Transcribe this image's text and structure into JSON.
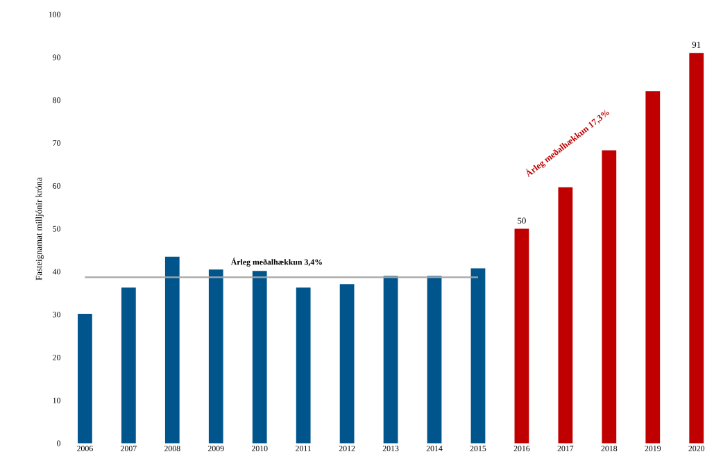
{
  "chart_data": {
    "type": "bar",
    "ylabel": "Fasteignamat milljónir króna",
    "categories": [
      "2006",
      "2007",
      "2008",
      "2009",
      "2010",
      "2011",
      "2012",
      "2013",
      "2014",
      "2015",
      "2016",
      "2017",
      "2018",
      "2019",
      "2020"
    ],
    "series": [
      {
        "values": [
          30.2,
          36.3,
          43.5,
          40.5,
          40.2,
          36.3,
          37.1,
          39.0,
          39.0,
          40.8,
          50,
          59.7,
          68.3,
          82.1,
          91
        ],
        "colors": [
          "#00558c",
          "#00558c",
          "#00558c",
          "#00558c",
          "#00558c",
          "#00558c",
          "#00558c",
          "#00558c",
          "#00558c",
          "#00558c",
          "#c00000",
          "#c00000",
          "#c00000",
          "#c00000",
          "#c00000"
        ],
        "value_labels": [
          null,
          null,
          null,
          null,
          null,
          null,
          null,
          null,
          null,
          null,
          "50",
          null,
          null,
          null,
          "91"
        ]
      },
      {
        "type": "line",
        "color": "#a6a6a6",
        "values": [
          38.7,
          38.7,
          38.7,
          38.7,
          38.7,
          38.7,
          38.7,
          38.7,
          38.7,
          38.7,
          null,
          null,
          null,
          null,
          null
        ]
      }
    ],
    "annotations": [
      {
        "text": "**Árleg meðalhækkun 3,4%**",
        "x": "2010",
        "y": 40
      },
      "**Árleg meðalhækkun 17,3%**"
    ],
    "ylim": [
      0,
      100
    ],
    "yticks": [
      0,
      10,
      20,
      30,
      40,
      50,
      60,
      70,
      80,
      90,
      100
    ],
    "grid": false
  }
}
